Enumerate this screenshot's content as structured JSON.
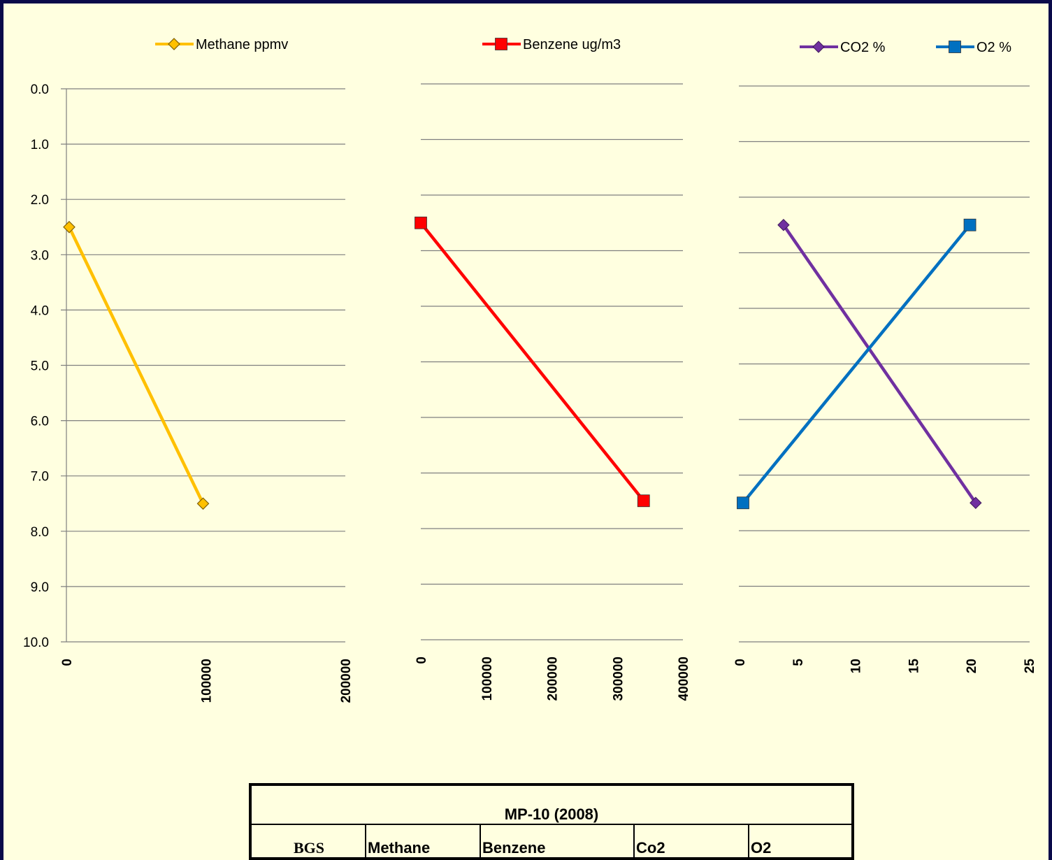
{
  "chart_data": [
    {
      "type": "line",
      "title": "",
      "xlabel": "",
      "ylabel": "",
      "xlim": [
        0,
        200000
      ],
      "ylim": [
        0,
        10
      ],
      "y_inverted": true,
      "grid": true,
      "legend_position": "top",
      "x_ticks": [
        "0",
        "100000",
        "200000"
      ],
      "y_ticks": [
        "0.0",
        "1.0",
        "2.0",
        "3.0",
        "4.0",
        "5.0",
        "6.0",
        "7.0",
        "8.0",
        "9.0",
        "10.0"
      ],
      "series": [
        {
          "name": "Methane ppmv",
          "color": "#FFC000",
          "marker": "diamond-open",
          "points": [
            {
              "x": 2000,
              "y": 2.5
            },
            {
              "x": 98000,
              "y": 7.5
            }
          ]
        }
      ]
    },
    {
      "type": "line",
      "title": "",
      "xlabel": "",
      "ylabel": "",
      "xlim": [
        0,
        400000
      ],
      "ylim": [
        0,
        10
      ],
      "y_inverted": true,
      "grid": true,
      "legend_position": "top",
      "x_ticks": [
        "0",
        "100000",
        "200000",
        "300000",
        "400000"
      ],
      "series": [
        {
          "name": "Benzene ug/m3",
          "color": "#FF0000",
          "marker": "square",
          "points": [
            {
              "x": 0,
              "y": 2.5
            },
            {
              "x": 340000,
              "y": 7.5
            }
          ]
        }
      ]
    },
    {
      "type": "line",
      "title": "",
      "xlabel": "",
      "ylabel": "",
      "xlim": [
        0,
        25
      ],
      "ylim": [
        0,
        10
      ],
      "y_inverted": true,
      "grid": true,
      "legend_position": "top",
      "x_ticks": [
        "0",
        "5",
        "10",
        "15",
        "20",
        "25"
      ],
      "series": [
        {
          "name": "CO2 %",
          "color": "#7030A0",
          "marker": "diamond",
          "points": [
            {
              "x": 3.8,
              "y": 2.5
            },
            {
              "x": 20.4,
              "y": 7.5
            }
          ]
        },
        {
          "name": "O2 %",
          "color": "#0070C0",
          "marker": "square",
          "points": [
            {
              "x": 19.9,
              "y": 2.5
            },
            {
              "x": 0.3,
              "y": 7.5
            }
          ]
        }
      ]
    }
  ],
  "table": {
    "title": "MP-10 (2008)",
    "columns": [
      "BGS",
      "Methane",
      "Benzene",
      "Co2",
      "O2"
    ]
  }
}
